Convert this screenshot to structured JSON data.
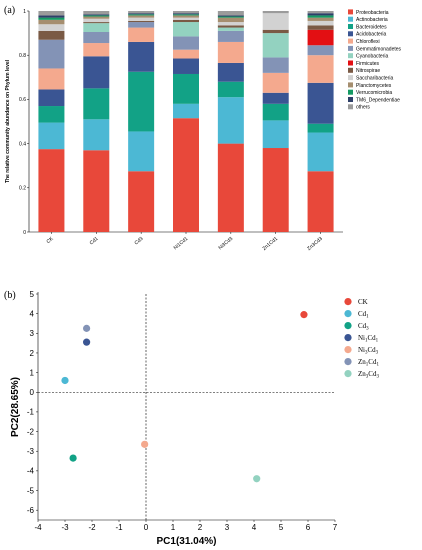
{
  "chart_data": [
    {
      "type": "bar",
      "stacked": true,
      "panel_label": "(a)",
      "ylabel": "The relative community abundance on Phylum level",
      "ylim": [
        0,
        1
      ],
      "yticks": [
        "0",
        "0.2",
        "0.4",
        "0.6",
        "0.8",
        "1"
      ],
      "categories": [
        "CK",
        "Cd1",
        "Cd3",
        "Ni1Cd1",
        "Ni3Cd3",
        "Zn1Cd1",
        "Zn3Cd3"
      ],
      "legend_position": "right",
      "series": [
        {
          "name": "Proteobacteria",
          "color": "#e8483a",
          "values": [
            0.375,
            0.37,
            0.275,
            0.515,
            0.4,
            0.38,
            0.275
          ]
        },
        {
          "name": "Actinobacteria",
          "color": "#4cb8d4",
          "values": [
            0.12,
            0.14,
            0.18,
            0.065,
            0.21,
            0.125,
            0.175
          ]
        },
        {
          "name": "Bacteroidetes",
          "color": "#12a286",
          "values": [
            0.075,
            0.14,
            0.27,
            0.135,
            0.07,
            0.075,
            0.04
          ]
        },
        {
          "name": "Acidobacteria",
          "color": "#3a5593",
          "values": [
            0.075,
            0.145,
            0.135,
            0.07,
            0.085,
            0.05,
            0.185
          ]
        },
        {
          "name": "Chloroflexi",
          "color": "#f4a98e",
          "values": [
            0.095,
            0.06,
            0.065,
            0.04,
            0.095,
            0.09,
            0.125
          ]
        },
        {
          "name": "Gemmatimonadetes",
          "color": "#8393b6",
          "values": [
            0.13,
            0.05,
            0.025,
            0.06,
            0.05,
            0.07,
            0.045
          ]
        },
        {
          "name": "Cyanobacteria",
          "color": "#93d2c0",
          "values": [
            0.0,
            0.04,
            0.0,
            0.065,
            0.015,
            0.11,
            0.0
          ]
        },
        {
          "name": "Firmicutes",
          "color": "#e30f13",
          "values": [
            0.0,
            0.0,
            0.0,
            0.0,
            0.0,
            0.0,
            0.07
          ]
        },
        {
          "name": "Nitrospirae",
          "color": "#7a5a45",
          "values": [
            0.04,
            0.005,
            0.005,
            0.01,
            0.01,
            0.015,
            0.02
          ]
        },
        {
          "name": "Saccharibacteria",
          "color": "#d2d2d2",
          "values": [
            0.03,
            0.015,
            0.015,
            0.01,
            0.015,
            0.075,
            0.02
          ]
        },
        {
          "name": "Planctomycetes",
          "color": "#a58e6f",
          "values": [
            0.02,
            0.01,
            0.01,
            0.01,
            0.02,
            0.0,
            0.015
          ]
        },
        {
          "name": "Verrucomicrobia",
          "color": "#159a63",
          "values": [
            0.01,
            0.005,
            0.005,
            0.005,
            0.005,
            0.0,
            0.01
          ]
        },
        {
          "name": "TM6_Dependentiae",
          "color": "#2e3f68",
          "values": [
            0.01,
            0.005,
            0.005,
            0.005,
            0.005,
            0.0,
            0.01
          ]
        },
        {
          "name": "others",
          "color": "#9b9b9b",
          "values": [
            0.02,
            0.015,
            0.01,
            0.01,
            0.02,
            0.01,
            0.01
          ]
        }
      ]
    },
    {
      "type": "scatter",
      "panel_label": "(b)",
      "xlabel": "PC1(31.04%)",
      "ylabel": "PC2(28.65%)",
      "xlim": [
        -4,
        7
      ],
      "ylim": [
        -6.5,
        5
      ],
      "xticks": [
        -4,
        -3,
        -2,
        -1,
        0,
        1,
        2,
        3,
        4,
        5,
        6,
        7
      ],
      "yticks": [
        5,
        4,
        3,
        2,
        1,
        0,
        -1,
        -2,
        -3,
        -4,
        -5,
        -6
      ],
      "legend_position": "right",
      "points": [
        {
          "name": "CK",
          "sub": "",
          "color": "#e8483a",
          "x": 5.85,
          "y": 3.95
        },
        {
          "name": "Cd",
          "sub": "1",
          "color": "#4cb8d4",
          "x": -3.0,
          "y": 0.6
        },
        {
          "name": "Cd",
          "sub": "3",
          "color": "#12a286",
          "x": -2.7,
          "y": -3.35
        },
        {
          "name": "Ni",
          "sub": "1",
          "sub_pos": "mid",
          "tail": "Cd",
          "tail_sub": "1",
          "color": "#3a5593",
          "x": -2.2,
          "y": 2.55
        },
        {
          "name": "Ni",
          "sub": "3",
          "tail": "Cd",
          "tail_sub": "3",
          "color": "#f4a98e",
          "x": -0.05,
          "y": -2.65
        },
        {
          "name": "Zn",
          "sub": "1",
          "tail": "Cd",
          "tail_sub": "1",
          "color": "#8393b6",
          "x": -2.2,
          "y": 3.25
        },
        {
          "name": "Zn",
          "sub": "3",
          "tail": "Cd",
          "tail_sub": "3",
          "color": "#93d2c0",
          "x": 4.1,
          "y": -4.4
        }
      ]
    }
  ]
}
